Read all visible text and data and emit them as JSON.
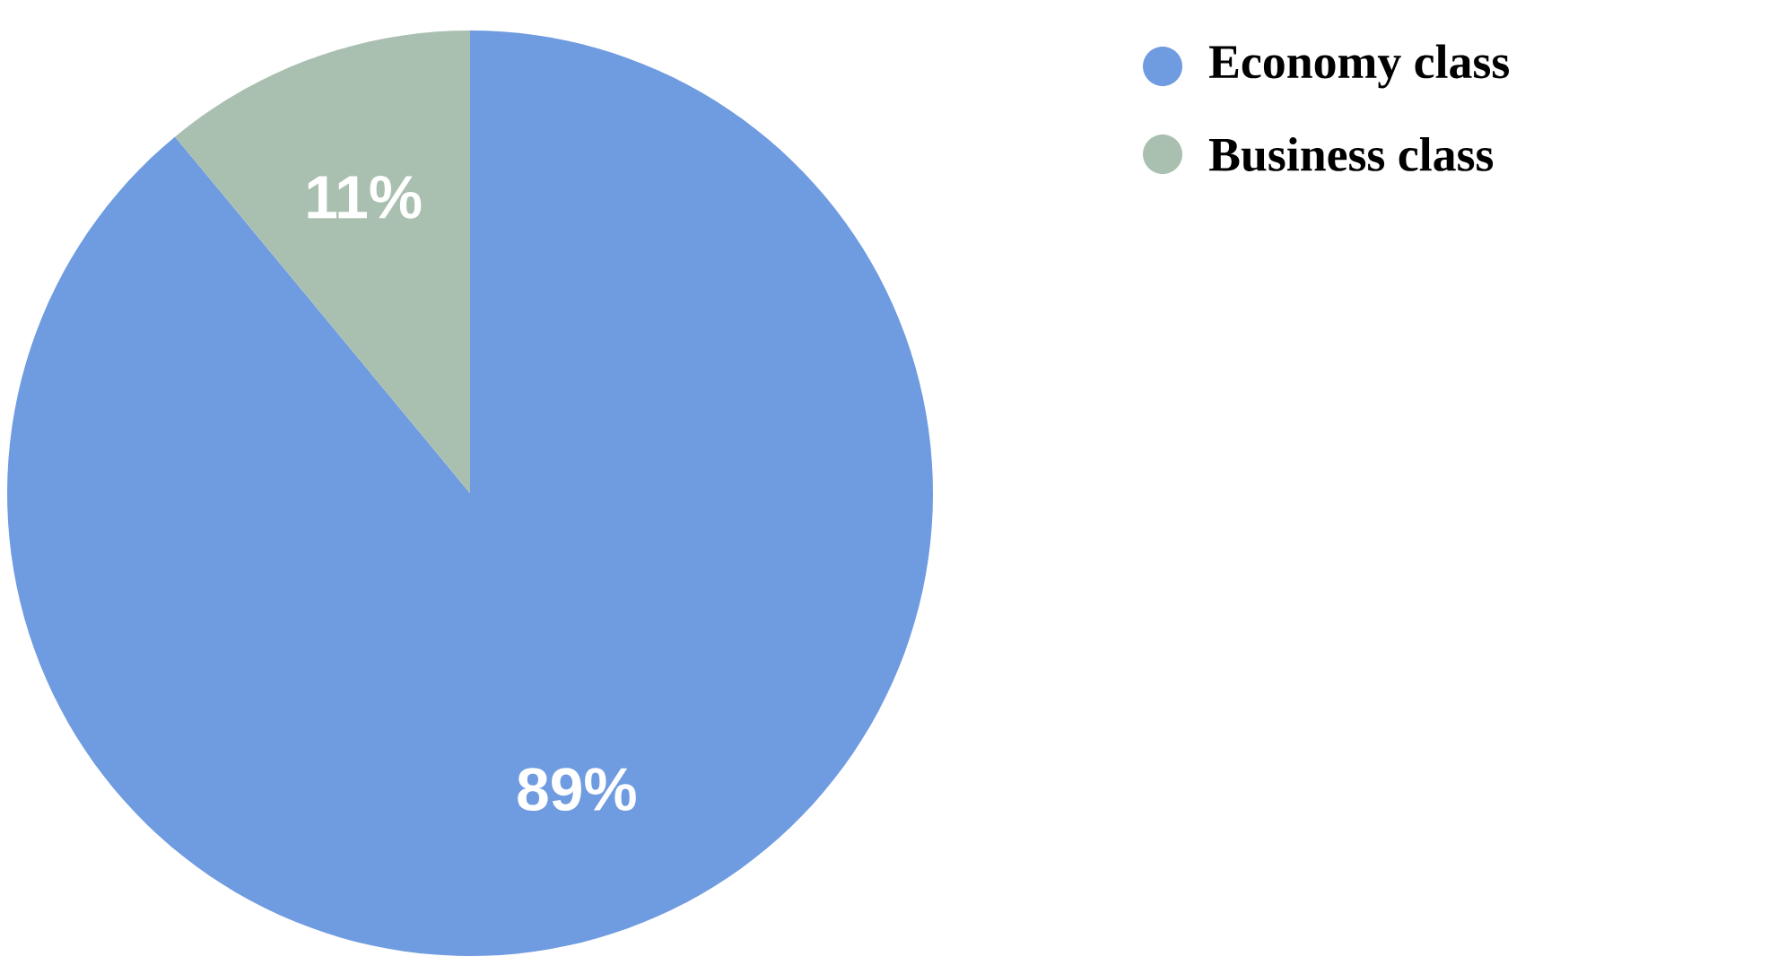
{
  "chart_data": {
    "type": "pie",
    "categories": [
      "Economy class",
      "Business class"
    ],
    "values": [
      89,
      11
    ],
    "colors": [
      "#6f9be0",
      "#a9c0b0"
    ],
    "value_labels": [
      "89%",
      "11%"
    ],
    "legend": "top right"
  }
}
